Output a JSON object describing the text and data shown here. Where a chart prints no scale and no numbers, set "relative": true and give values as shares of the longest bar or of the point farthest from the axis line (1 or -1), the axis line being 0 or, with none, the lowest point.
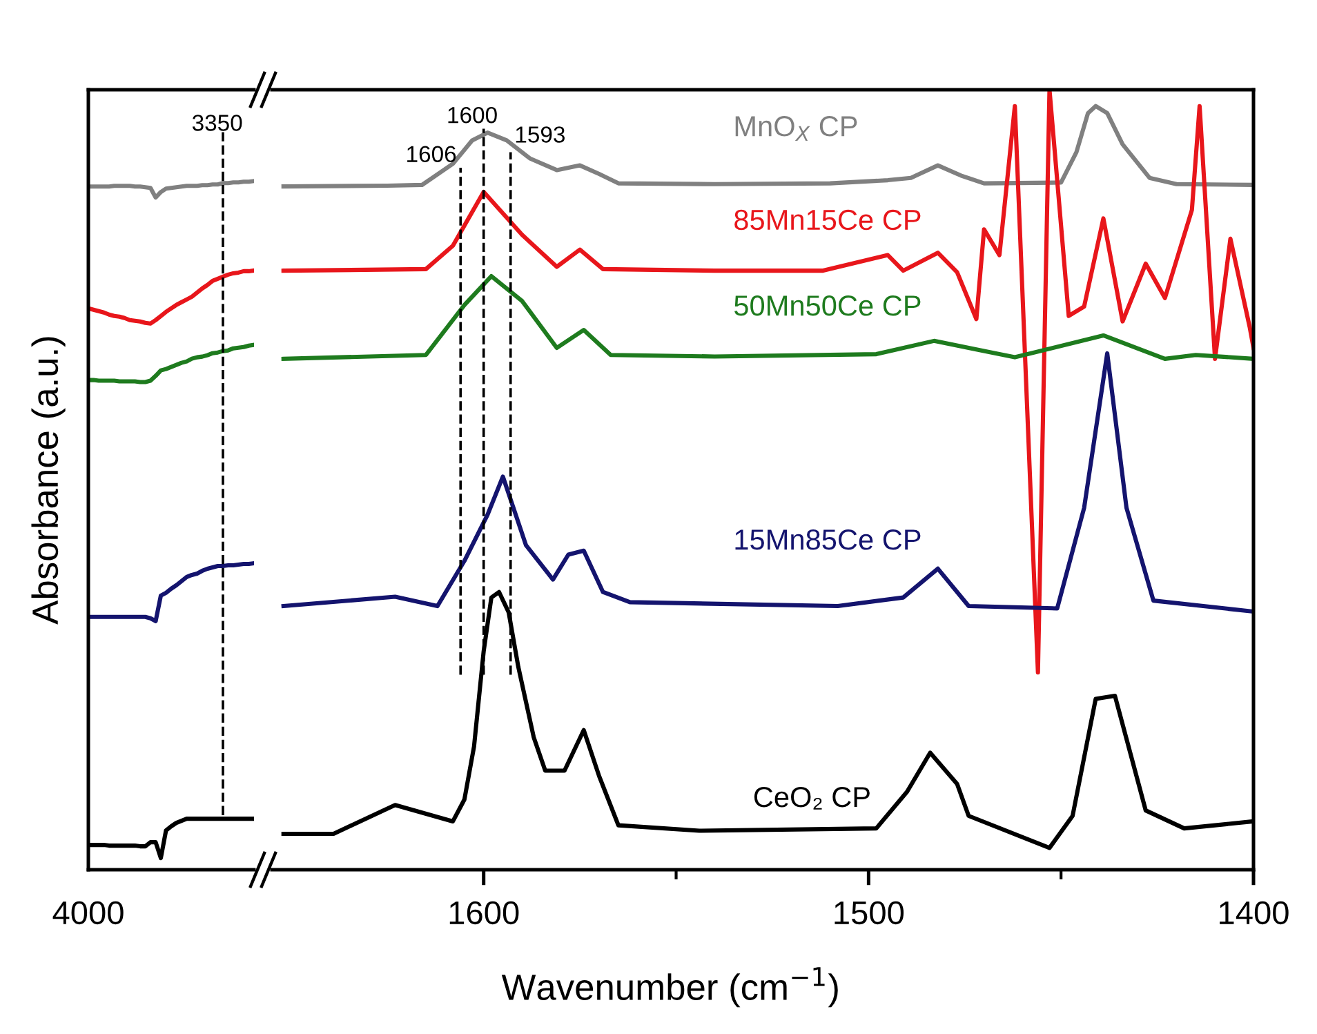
{
  "chart_data": [
    {
      "type": "line",
      "ylabel": "Absorbance (a.u.)",
      "relative": true,
      "tick_labels": "x",
      "grid": false,
      "legend": false,
      "line_style": "solid",
      "marker": "none",
      "annotations": [
        "4000"
      ],
      "categories": [
        null,
        null,
        null,
        null,
        null,
        null,
        null,
        null,
        null,
        null,
        null,
        null,
        null,
        null,
        null,
        null,
        null,
        null,
        null,
        null,
        null,
        null,
        null,
        null,
        null,
        null,
        null,
        null,
        null,
        null,
        null,
        null,
        null
      ],
      "ref_lines": [
        {
          "axis": "x",
          "label": "3350",
          "color": "#000000",
          "line_style": "dashed"
        }
      ],
      "series": [
        {
          "color": "#808080",
          "values": [
            0.992,
            0.992,
            0.992,
            0.992,
            0.992,
            0.993,
            0.993,
            0.993,
            0.993,
            0.992,
            0.992,
            0.991,
            0.99,
            0.976,
            0.984,
            0.989,
            0.99,
            0.991,
            0.992,
            0.993,
            0.993,
            0.993,
            0.994,
            0.994,
            0.995,
            0.995,
            0.997,
            0.997,
            0.998,
            0.998,
            0.999,
            0.999,
            1.0
          ]
        },
        {
          "color": "#e8161b",
          "values": [
            0.815,
            0.813,
            0.811,
            0.809,
            0.806,
            0.804,
            0.803,
            0.801,
            0.798,
            0.797,
            0.796,
            0.794,
            0.793,
            0.798,
            0.804,
            0.81,
            0.815,
            0.82,
            0.824,
            0.828,
            0.832,
            0.838,
            0.844,
            0.849,
            0.855,
            0.858,
            0.861,
            0.864,
            0.866,
            0.867,
            0.869,
            0.869,
            0.87
          ]
        },
        {
          "color": "#1e7b1e",
          "values": [
            0.711,
            0.711,
            0.71,
            0.71,
            0.71,
            0.71,
            0.709,
            0.709,
            0.709,
            0.709,
            0.708,
            0.708,
            0.71,
            0.717,
            0.725,
            0.727,
            0.73,
            0.733,
            0.736,
            0.738,
            0.742,
            0.744,
            0.745,
            0.747,
            0.75,
            0.751,
            0.753,
            0.754,
            0.757,
            0.758,
            0.759,
            0.761,
            0.762
          ]
        },
        {
          "color": "#14146e",
          "values": [
            0.367,
            0.367,
            0.367,
            0.367,
            0.367,
            0.367,
            0.367,
            0.367,
            0.367,
            0.367,
            0.367,
            0.367,
            0.365,
            0.361,
            0.398,
            0.402,
            0.408,
            0.413,
            0.419,
            0.425,
            0.428,
            0.43,
            0.434,
            0.437,
            0.439,
            0.441,
            0.441,
            0.442,
            0.442,
            0.443,
            0.444,
            0.444,
            0.445
          ]
        },
        {
          "color": "#000000",
          "values": [
            0.036,
            0.036,
            0.036,
            0.036,
            0.035,
            0.035,
            0.035,
            0.035,
            0.035,
            0.035,
            0.034,
            0.034,
            0.04,
            0.04,
            0.017,
            0.057,
            0.063,
            0.068,
            0.071,
            0.074,
            0.074,
            0.074,
            0.074,
            0.074,
            0.074,
            0.074,
            0.074,
            0.074,
            0.074,
            0.074,
            0.074,
            0.074,
            0.074
          ]
        }
      ]
    },
    {
      "type": "line",
      "xlabel": "Wavenumber (cm$^{−1}$)",
      "relative": true,
      "tick_labels": "x",
      "grid": false,
      "legend": false,
      "line_style": "solid",
      "marker": "none",
      "xlim": [
        1655,
        1400
      ],
      "xticks": [
        1600,
        {
          "value": 1550,
          "label": null
        },
        1500,
        {
          "value": 1450,
          "label": null
        },
        1400
      ],
      "ref_lines": [
        {
          "axis": "x",
          "value": 1606,
          "label": "1606",
          "color": "#000000",
          "line_style": "dashed"
        },
        {
          "axis": "x",
          "value": 1600,
          "label": "1600",
          "color": "#000000",
          "line_style": "dashed"
        },
        {
          "axis": "x",
          "value": 1593,
          "label": "1593",
          "color": "#000000",
          "line_style": "dashed"
        }
      ],
      "series": [
        {
          "name": "MnO$_{X}$ CP",
          "color": "#808080",
          "x": [
            1652,
            1625,
            1616,
            1608,
            1603,
            1599,
            1594,
            1588,
            1581,
            1575,
            1570,
            1565,
            1540,
            1510,
            1495,
            1489,
            1482,
            1476,
            1470,
            1450,
            1446,
            1443,
            1441,
            1438,
            1434,
            1427,
            1420,
            1400
          ],
          "values": [
            0.876,
            0.877,
            0.878,
            0.905,
            0.935,
            0.945,
            0.935,
            0.912,
            0.897,
            0.903,
            0.892,
            0.88,
            0.879,
            0.88,
            0.884,
            0.887,
            0.903,
            0.89,
            0.88,
            0.881,
            0.92,
            0.97,
            0.979,
            0.97,
            0.93,
            0.887,
            0.879,
            0.878
          ]
        },
        {
          "name": "85Mn15Ce CP",
          "color": "#e8161b",
          "x": [
            1652,
            1615,
            1608,
            1600,
            1590,
            1581,
            1575,
            1569,
            1540,
            1512,
            1495,
            1491,
            1482,
            1477,
            1472,
            1470,
            1466,
            1462,
            1456,
            1453,
            1448,
            1444,
            1439,
            1434,
            1428,
            1423,
            1416,
            1414,
            1410,
            1406,
            1401,
            1400
          ],
          "values": [
            0.768,
            0.77,
            0.8,
            0.869,
            0.814,
            0.773,
            0.795,
            0.77,
            0.768,
            0.768,
            0.788,
            0.768,
            0.791,
            0.766,
            0.706,
            0.821,
            0.788,
            0.979,
            0.253,
            1.0,
            0.71,
            0.722,
            0.835,
            0.703,
            0.777,
            0.733,
            0.846,
            0.979,
            0.655,
            0.809,
            0.696,
            0.669
          ]
        },
        {
          "name": "50Mn50Ce CP",
          "color": "#1e7b1e",
          "x": [
            1652,
            1615,
            1605,
            1598,
            1590,
            1581,
            1574,
            1567,
            1540,
            1498,
            1483,
            1462,
            1439,
            1423,
            1415,
            1400
          ],
          "values": [
            0.655,
            0.66,
            0.724,
            0.761,
            0.729,
            0.669,
            0.692,
            0.66,
            0.658,
            0.661,
            0.678,
            0.657,
            0.685,
            0.655,
            0.66,
            0.655
          ]
        },
        {
          "name": "15Mn85Ce CP",
          "color": "#14146e",
          "x": [
            1652,
            1623,
            1612,
            1605,
            1599,
            1595,
            1589,
            1582,
            1578,
            1574,
            1569,
            1562,
            1508,
            1491,
            1482,
            1474,
            1451,
            1444,
            1438,
            1433,
            1426,
            1400
          ],
          "values": [
            0.338,
            0.35,
            0.338,
            0.396,
            0.455,
            0.504,
            0.416,
            0.372,
            0.404,
            0.409,
            0.356,
            0.343,
            0.338,
            0.349,
            0.386,
            0.338,
            0.335,
            0.464,
            0.662,
            0.464,
            0.345,
            0.331
          ]
        },
        {
          "name": "CeO₂ CP",
          "color": "#000000",
          "x": [
            1652,
            1639,
            1623,
            1608,
            1605,
            1602.5,
            1600,
            1598,
            1596,
            1593.5,
            1591,
            1587,
            1584,
            1579,
            1574,
            1570,
            1565,
            1544,
            1498,
            1490,
            1484,
            1477,
            1474,
            1453,
            1447,
            1441,
            1436,
            1428,
            1418,
            1400
          ],
          "values": [
            0.046,
            0.046,
            0.083,
            0.062,
            0.09,
            0.158,
            0.28,
            0.349,
            0.356,
            0.33,
            0.26,
            0.17,
            0.127,
            0.127,
            0.179,
            0.12,
            0.057,
            0.05,
            0.053,
            0.1,
            0.15,
            0.11,
            0.069,
            0.028,
            0.069,
            0.219,
            0.223,
            0.076,
            0.053,
            0.062
          ]
        }
      ]
    }
  ]
}
